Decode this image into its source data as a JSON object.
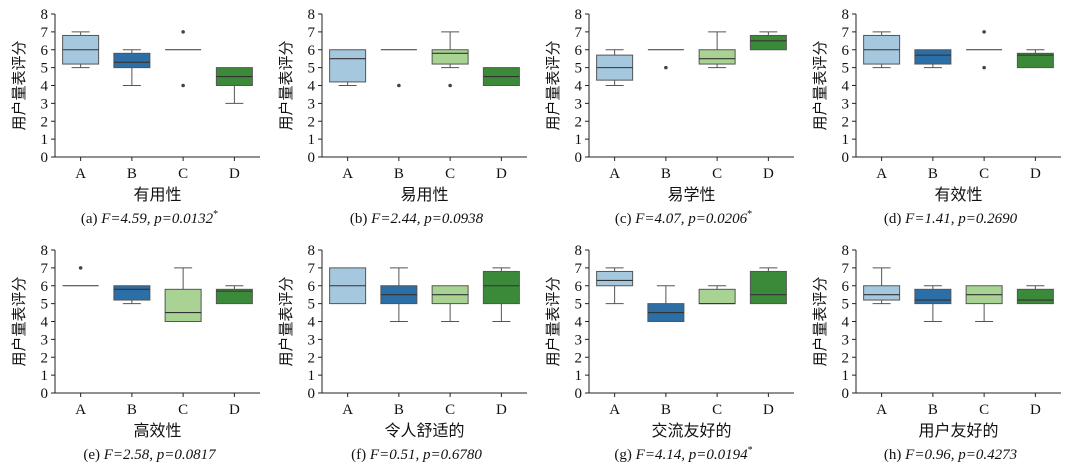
{
  "ylabel": "用户量表评分",
  "yticks": [
    0,
    1,
    2,
    3,
    4,
    5,
    6,
    7,
    8
  ],
  "categories": [
    "A",
    "B",
    "C",
    "D"
  ],
  "colors": {
    "A": "#a6c8df",
    "B": "#2c6ea6",
    "C": "#a8d393",
    "D": "#3a8a39"
  },
  "chart_data": [
    {
      "type": "box",
      "xlabel": "有用性",
      "caption": {
        "label": "(a)",
        "stats": "F=4.59, p=0.0132",
        "sig": "*"
      },
      "ylim": [
        0,
        8
      ],
      "boxes": [
        {
          "category": "A",
          "q1": 5.2,
          "median": 6.0,
          "q3": 6.8,
          "whisker_low": 5.0,
          "whisker_high": 7.0,
          "outliers": []
        },
        {
          "category": "B",
          "q1": 5.0,
          "median": 5.3,
          "q3": 5.8,
          "whisker_low": 4.0,
          "whisker_high": 6.0,
          "outliers": []
        },
        {
          "category": "C",
          "q1": 6.0,
          "median": 6.0,
          "q3": 6.0,
          "whisker_low": 6.0,
          "whisker_high": 6.0,
          "outliers": [
            7.0,
            4.0
          ]
        },
        {
          "category": "D",
          "q1": 4.0,
          "median": 4.5,
          "q3": 5.0,
          "whisker_low": 3.0,
          "whisker_high": 5.0,
          "outliers": []
        }
      ]
    },
    {
      "type": "box",
      "xlabel": "易用性",
      "caption": {
        "label": "(b)",
        "stats": "F=2.44, p=0.0938",
        "sig": ""
      },
      "ylim": [
        0,
        8
      ],
      "boxes": [
        {
          "category": "A",
          "q1": 4.2,
          "median": 5.5,
          "q3": 6.0,
          "whisker_low": 4.0,
          "whisker_high": 6.0,
          "outliers": []
        },
        {
          "category": "B",
          "q1": 6.0,
          "median": 6.0,
          "q3": 6.0,
          "whisker_low": 6.0,
          "whisker_high": 6.0,
          "outliers": [
            4.0
          ]
        },
        {
          "category": "C",
          "q1": 5.2,
          "median": 5.8,
          "q3": 6.0,
          "whisker_low": 5.0,
          "whisker_high": 7.0,
          "outliers": [
            4.0
          ]
        },
        {
          "category": "D",
          "q1": 4.0,
          "median": 4.5,
          "q3": 5.0,
          "whisker_low": 4.0,
          "whisker_high": 5.0,
          "outliers": []
        }
      ]
    },
    {
      "type": "box",
      "xlabel": "易学性",
      "caption": {
        "label": "(c)",
        "stats": "F=4.07, p=0.0206",
        "sig": "*"
      },
      "ylim": [
        0,
        8
      ],
      "boxes": [
        {
          "category": "A",
          "q1": 4.3,
          "median": 5.0,
          "q3": 5.7,
          "whisker_low": 4.0,
          "whisker_high": 6.0,
          "outliers": []
        },
        {
          "category": "B",
          "q1": 6.0,
          "median": 6.0,
          "q3": 6.0,
          "whisker_low": 6.0,
          "whisker_high": 6.0,
          "outliers": [
            5.0
          ]
        },
        {
          "category": "C",
          "q1": 5.2,
          "median": 5.5,
          "q3": 6.0,
          "whisker_low": 5.0,
          "whisker_high": 7.0,
          "outliers": []
        },
        {
          "category": "D",
          "q1": 6.0,
          "median": 6.5,
          "q3": 6.8,
          "whisker_low": 6.0,
          "whisker_high": 7.0,
          "outliers": []
        }
      ]
    },
    {
      "type": "box",
      "xlabel": "有效性",
      "caption": {
        "label": "(d)",
        "stats": "F=1.41, p=0.2690",
        "sig": ""
      },
      "ylim": [
        0,
        8
      ],
      "boxes": [
        {
          "category": "A",
          "q1": 5.2,
          "median": 6.0,
          "q3": 6.8,
          "whisker_low": 5.0,
          "whisker_high": 7.0,
          "outliers": []
        },
        {
          "category": "B",
          "q1": 5.2,
          "median": 5.7,
          "q3": 6.0,
          "whisker_low": 5.0,
          "whisker_high": 6.0,
          "outliers": []
        },
        {
          "category": "C",
          "q1": 6.0,
          "median": 6.0,
          "q3": 6.0,
          "whisker_low": 6.0,
          "whisker_high": 6.0,
          "outliers": [
            7.0,
            5.0
          ]
        },
        {
          "category": "D",
          "q1": 5.0,
          "median": 5.7,
          "q3": 5.8,
          "whisker_low": 5.0,
          "whisker_high": 6.0,
          "outliers": []
        }
      ]
    },
    {
      "type": "box",
      "xlabel": "高效性",
      "caption": {
        "label": "(e)",
        "stats": "F=2.58, p=0.0817",
        "sig": ""
      },
      "ylim": [
        0,
        8
      ],
      "boxes": [
        {
          "category": "A",
          "q1": 6.0,
          "median": 6.0,
          "q3": 6.0,
          "whisker_low": 6.0,
          "whisker_high": 6.0,
          "outliers": [
            7.0
          ]
        },
        {
          "category": "B",
          "q1": 5.2,
          "median": 5.8,
          "q3": 6.0,
          "whisker_low": 5.0,
          "whisker_high": 6.0,
          "outliers": []
        },
        {
          "category": "C",
          "q1": 4.0,
          "median": 4.5,
          "q3": 5.8,
          "whisker_low": 4.0,
          "whisker_high": 7.0,
          "outliers": []
        },
        {
          "category": "D",
          "q1": 5.0,
          "median": 5.7,
          "q3": 5.8,
          "whisker_low": 5.0,
          "whisker_high": 6.0,
          "outliers": []
        }
      ]
    },
    {
      "type": "box",
      "xlabel": "令人舒适的",
      "caption": {
        "label": "(f)",
        "stats": "F=0.51, p=0.6780",
        "sig": ""
      },
      "ylim": [
        0,
        8
      ],
      "boxes": [
        {
          "category": "A",
          "q1": 5.0,
          "median": 6.0,
          "q3": 7.0,
          "whisker_low": 5.0,
          "whisker_high": 7.0,
          "outliers": []
        },
        {
          "category": "B",
          "q1": 5.0,
          "median": 5.5,
          "q3": 6.0,
          "whisker_low": 4.0,
          "whisker_high": 7.0,
          "outliers": []
        },
        {
          "category": "C",
          "q1": 5.0,
          "median": 5.5,
          "q3": 6.0,
          "whisker_low": 4.0,
          "whisker_high": 6.0,
          "outliers": []
        },
        {
          "category": "D",
          "q1": 5.0,
          "median": 6.0,
          "q3": 6.8,
          "whisker_low": 4.0,
          "whisker_high": 7.0,
          "outliers": []
        }
      ]
    },
    {
      "type": "box",
      "xlabel": "交流友好的",
      "caption": {
        "label": "(g)",
        "stats": "F=4.14, p=0.0194",
        "sig": "*"
      },
      "ylim": [
        0,
        8
      ],
      "boxes": [
        {
          "category": "A",
          "q1": 6.0,
          "median": 6.3,
          "q3": 6.8,
          "whisker_low": 5.0,
          "whisker_high": 7.0,
          "outliers": []
        },
        {
          "category": "B",
          "q1": 4.0,
          "median": 4.5,
          "q3": 5.0,
          "whisker_low": 4.0,
          "whisker_high": 6.0,
          "outliers": []
        },
        {
          "category": "C",
          "q1": 5.0,
          "median": 5.0,
          "q3": 5.8,
          "whisker_low": 5.0,
          "whisker_high": 6.0,
          "outliers": []
        },
        {
          "category": "D",
          "q1": 5.0,
          "median": 5.5,
          "q3": 6.8,
          "whisker_low": 5.0,
          "whisker_high": 7.0,
          "outliers": []
        }
      ]
    },
    {
      "type": "box",
      "xlabel": "用户友好的",
      "caption": {
        "label": "(h)",
        "stats": "F=0.96, p=0.4273",
        "sig": ""
      },
      "ylim": [
        0,
        8
      ],
      "boxes": [
        {
          "category": "A",
          "q1": 5.2,
          "median": 5.5,
          "q3": 6.0,
          "whisker_low": 5.0,
          "whisker_high": 7.0,
          "outliers": []
        },
        {
          "category": "B",
          "q1": 5.0,
          "median": 5.2,
          "q3": 5.8,
          "whisker_low": 4.0,
          "whisker_high": 6.0,
          "outliers": []
        },
        {
          "category": "C",
          "q1": 5.0,
          "median": 5.5,
          "q3": 6.0,
          "whisker_low": 4.0,
          "whisker_high": 6.0,
          "outliers": []
        },
        {
          "category": "D",
          "q1": 5.0,
          "median": 5.2,
          "q3": 5.8,
          "whisker_low": 5.0,
          "whisker_high": 6.0,
          "outliers": []
        }
      ]
    }
  ]
}
